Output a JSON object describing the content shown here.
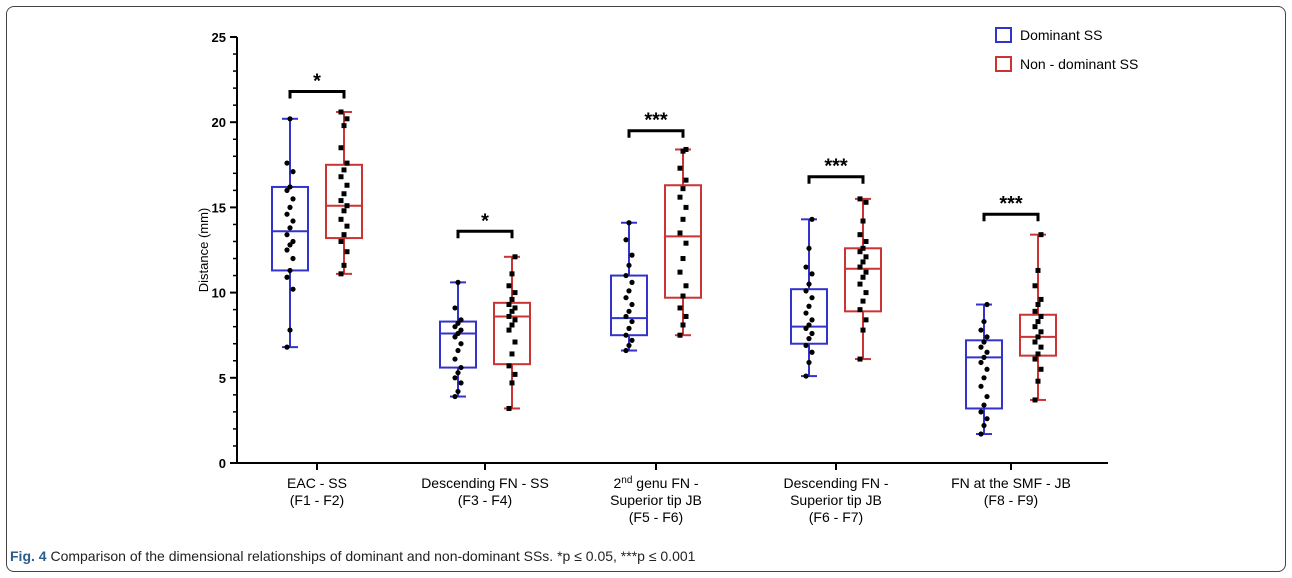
{
  "chart_data": {
    "type": "box",
    "ylabel": "Distance (mm)",
    "ylim": [
      0,
      25
    ],
    "yticks": [
      0,
      5,
      10,
      15,
      20,
      25
    ],
    "legend": {
      "placement": "top-right",
      "entries": [
        "Dominant SS",
        "Non - dominant SS"
      ]
    },
    "series_colors": [
      "#3333cc",
      "#cc3333"
    ],
    "categories": [
      {
        "lines": [
          "EAC - SS",
          "(F1 - F2)"
        ]
      },
      {
        "lines": [
          "Descending FN - SS",
          "(F3 - F4)"
        ]
      },
      {
        "lines": [
          "2nd genu FN -",
          "Superior tip JB",
          "(F5 - F6)"
        ]
      },
      {
        "lines": [
          "Descending FN -",
          "Superior tip JB",
          "(F6 - F7)"
        ]
      },
      {
        "lines": [
          "FN at the SMF - JB",
          "(F8 - F9)"
        ]
      }
    ],
    "groups": [
      {
        "significance": "*",
        "bracket_y": 21.8,
        "boxes": [
          {
            "series": "Dominant SS",
            "min": 6.8,
            "q1": 11.3,
            "median": 13.6,
            "q3": 16.2,
            "max": 20.2,
            "points": [
              6.8,
              7.8,
              10.2,
              10.9,
              11.3,
              12.0,
              12.5,
              12.8,
              13.0,
              13.4,
              13.8,
              14.2,
              14.6,
              15.0,
              15.5,
              16.0,
              16.2,
              17.1,
              17.6,
              20.2
            ]
          },
          {
            "series": "Non - dominant SS",
            "min": 11.1,
            "q1": 13.2,
            "median": 15.1,
            "q3": 17.5,
            "max": 20.6,
            "points": [
              11.1,
              11.6,
              12.4,
              13.0,
              13.4,
              13.9,
              14.3,
              14.8,
              15.1,
              15.4,
              15.8,
              16.3,
              16.8,
              17.2,
              17.6,
              18.5,
              19.8,
              20.2,
              20.6
            ]
          }
        ]
      },
      {
        "significance": "*",
        "bracket_y": 13.6,
        "boxes": [
          {
            "series": "Dominant SS",
            "min": 3.9,
            "q1": 5.6,
            "median": 7.6,
            "q3": 8.3,
            "max": 10.6,
            "points": [
              3.9,
              4.2,
              4.7,
              5.0,
              5.3,
              5.6,
              6.1,
              6.6,
              7.0,
              7.4,
              7.6,
              7.8,
              8.0,
              8.2,
              8.4,
              9.1,
              10.6
            ]
          },
          {
            "series": "Non - dominant SS",
            "min": 3.2,
            "q1": 5.8,
            "median": 8.6,
            "q3": 9.4,
            "max": 12.1,
            "points": [
              3.2,
              4.7,
              5.2,
              5.7,
              6.4,
              7.1,
              7.8,
              8.1,
              8.4,
              8.6,
              8.9,
              9.1,
              9.3,
              9.6,
              10.0,
              10.4,
              11.1,
              12.1
            ]
          }
        ]
      },
      {
        "significance": "***",
        "bracket_y": 19.5,
        "boxes": [
          {
            "series": "Dominant SS",
            "min": 6.6,
            "q1": 7.5,
            "median": 8.5,
            "q3": 11.0,
            "max": 14.1,
            "points": [
              6.6,
              6.9,
              7.2,
              7.5,
              7.9,
              8.3,
              8.6,
              8.9,
              9.3,
              9.7,
              10.1,
              10.6,
              11.0,
              11.6,
              12.2,
              13.1,
              14.1
            ]
          },
          {
            "series": "Non - dominant SS",
            "min": 7.5,
            "q1": 9.7,
            "median": 13.3,
            "q3": 16.3,
            "max": 18.4,
            "points": [
              7.5,
              8.1,
              8.6,
              9.1,
              9.8,
              10.4,
              11.2,
              12.0,
              12.9,
              13.5,
              14.3,
              15.0,
              15.6,
              16.1,
              16.6,
              17.3,
              18.3,
              18.4
            ]
          }
        ]
      },
      {
        "significance": "***",
        "bracket_y": 16.8,
        "boxes": [
          {
            "series": "Dominant SS",
            "min": 5.1,
            "q1": 7.0,
            "median": 8.0,
            "q3": 10.2,
            "max": 14.3,
            "points": [
              5.1,
              5.9,
              6.5,
              6.9,
              7.3,
              7.6,
              7.9,
              8.1,
              8.4,
              8.8,
              9.2,
              9.7,
              10.1,
              10.5,
              11.1,
              11.5,
              12.6,
              14.3
            ]
          },
          {
            "series": "Non - dominant SS",
            "min": 6.1,
            "q1": 8.9,
            "median": 11.4,
            "q3": 12.6,
            "max": 15.5,
            "points": [
              6.1,
              7.8,
              8.4,
              9.0,
              9.5,
              10.0,
              10.5,
              10.9,
              11.2,
              11.5,
              11.8,
              12.1,
              12.4,
              12.6,
              13.0,
              13.4,
              14.2,
              15.3,
              15.5
            ]
          }
        ]
      },
      {
        "significance": "***",
        "bracket_y": 14.6,
        "boxes": [
          {
            "series": "Dominant SS",
            "min": 1.7,
            "q1": 3.2,
            "median": 6.2,
            "q3": 7.2,
            "max": 9.3,
            "points": [
              1.7,
              2.2,
              2.6,
              3.0,
              3.4,
              3.9,
              4.5,
              5.0,
              5.5,
              5.9,
              6.2,
              6.5,
              6.8,
              7.1,
              7.4,
              7.8,
              8.3,
              9.3
            ]
          },
          {
            "series": "Non - dominant SS",
            "min": 3.7,
            "q1": 6.3,
            "median": 7.4,
            "q3": 8.7,
            "max": 13.4,
            "points": [
              3.7,
              4.8,
              5.5,
              6.1,
              6.4,
              6.8,
              7.1,
              7.4,
              7.7,
              8.0,
              8.3,
              8.6,
              8.9,
              9.3,
              9.6,
              10.4,
              11.3,
              13.4
            ]
          }
        ]
      }
    ]
  },
  "caption": {
    "label": "Fig. 4",
    "text": "Comparison of the dimensional relationships of dominant and non-dominant SSs. *p ≤ 0.05, ***p ≤ 0.001"
  }
}
